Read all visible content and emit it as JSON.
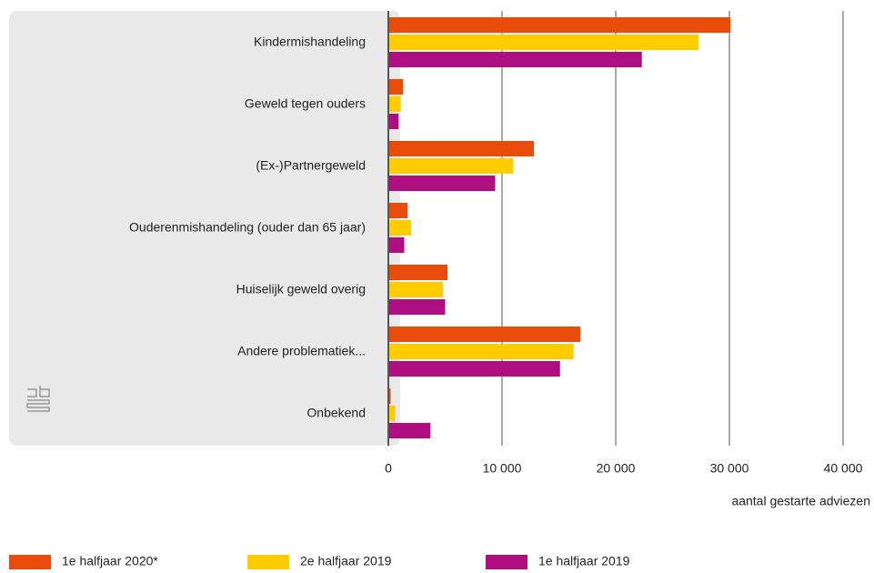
{
  "chart_data": {
    "type": "barh",
    "categories": [
      "Kindermishandeling",
      "Geweld tegen ouders",
      "(Ex-)Partnergeweld",
      "Ouderenmishandeling (ouder dan 65 jaar)",
      "Huiselijk geweld overig",
      "Andere problematiek...",
      "Onbekend"
    ],
    "series": [
      {
        "name": "1e halfjaar 2020*",
        "color": "#e94c0a",
        "values": [
          30100,
          1300,
          12800,
          1700,
          5200,
          16900,
          200
        ]
      },
      {
        "name": "2e halfjaar 2019",
        "color": "#ffcc00",
        "values": [
          27300,
          1100,
          11000,
          2000,
          4800,
          16300,
          600
        ]
      },
      {
        "name": "1e halfjaar 2019",
        "color": "#af0e80",
        "values": [
          22300,
          900,
          9400,
          1400,
          5000,
          15100,
          3700
        ]
      }
    ],
    "xlim": [
      0,
      40000
    ],
    "xticks": [
      0,
      {
        "value": 10000,
        "label": "10 000"
      },
      {
        "value": 20000,
        "label": "20 000"
      },
      {
        "value": 30000,
        "label": "30 000"
      },
      {
        "value": 40000,
        "label": "40 000"
      }
    ],
    "xlabel": "aantal gestarte adviezen",
    "grid": true,
    "legend": "bottom"
  }
}
